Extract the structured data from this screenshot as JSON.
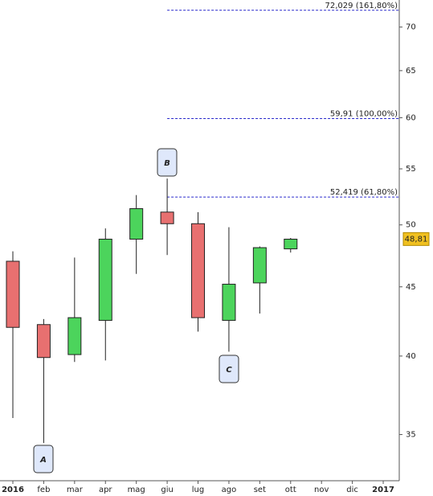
{
  "chart_data": {
    "type": "candlestick",
    "categories": [
      "2016",
      "feb",
      "mar",
      "apr",
      "mag",
      "giu",
      "lug",
      "ago",
      "set",
      "ott",
      "nov",
      "dic",
      "2017"
    ],
    "open": [
      47.0,
      42.2,
      40.1,
      42.5,
      48.8,
      51.1,
      50.1,
      42.5,
      45.3,
      48.0,
      null,
      null,
      null
    ],
    "high": [
      47.8,
      42.6,
      47.3,
      49.7,
      52.6,
      54.1,
      51.1,
      49.8,
      48.2,
      48.9,
      null,
      null,
      null
    ],
    "low": [
      36.0,
      34.5,
      39.6,
      39.7,
      46.0,
      47.5,
      41.7,
      40.3,
      43.0,
      47.7,
      null,
      null,
      null
    ],
    "close": [
      42.0,
      39.9,
      42.7,
      48.8,
      51.4,
      50.1,
      42.7,
      45.2,
      48.1,
      48.8,
      null,
      null,
      null
    ],
    "up_color": "#4cd45c",
    "down_color": "#e87070",
    "ylim": [
      32.4,
      73.3
    ],
    "log_scale": true,
    "yticks": [
      35,
      40,
      45,
      50,
      55,
      60,
      65,
      70
    ],
    "levels": [
      {
        "value": 72.029,
        "label": "72,029 (161,80%)"
      },
      {
        "value": 59.91,
        "label": "59,91 (100,00%)"
      },
      {
        "value": 52.419,
        "label": "52,419 (61,80%)"
      }
    ],
    "level_color": "#2a2acc",
    "last_price": {
      "value": 48.81,
      "label": "48,81"
    },
    "annotations": [
      "A",
      "B",
      "C"
    ]
  }
}
